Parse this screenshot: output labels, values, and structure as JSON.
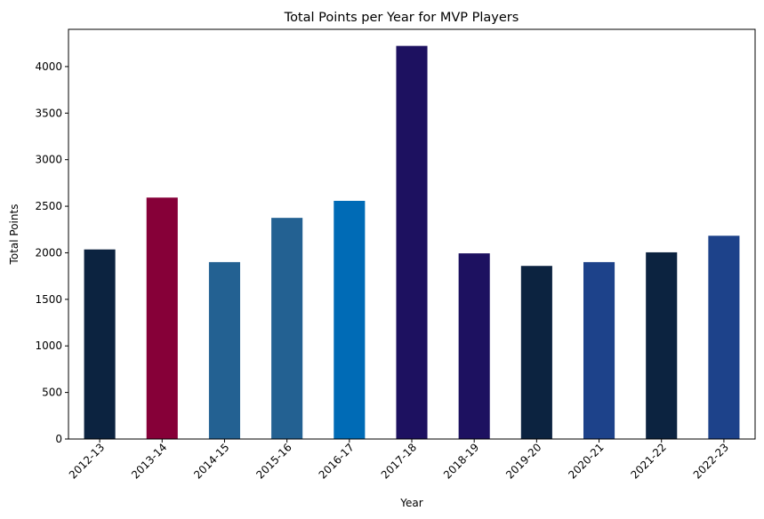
{
  "chart_data": {
    "type": "bar",
    "title": "Total Points per Year for MVP Players",
    "xlabel": "Year",
    "ylabel": "Total Points",
    "ylim": [
      0,
      4400
    ],
    "yticks": [
      0,
      500,
      1000,
      1500,
      2000,
      2500,
      3000,
      3500,
      4000
    ],
    "categories": [
      "2012-13",
      "2013-14",
      "2014-15",
      "2015-16",
      "2016-17",
      "2017-18",
      "2018-19",
      "2019-20",
      "2020-21",
      "2021-22",
      "2022-23"
    ],
    "values": [
      2036,
      2593,
      1900,
      2375,
      2558,
      4222,
      1994,
      1859,
      1900,
      2005,
      2183
    ],
    "colors": [
      "#0C2340",
      "#860038",
      "#236192",
      "#236192",
      "#006BB6",
      "#1D1160",
      "#1D1160",
      "#0C2340",
      "#1D428A",
      "#0C2340",
      "#1D428A"
    ],
    "grid": false,
    "legend": "none"
  }
}
